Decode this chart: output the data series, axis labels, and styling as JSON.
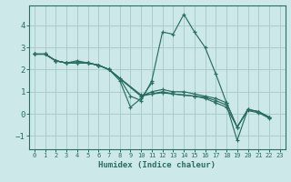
{
  "xlabel": "Humidex (Indice chaleur)",
  "ylabel": "",
  "bg_color": "#cce8e8",
  "grid_color": "#aacccc",
  "line_color": "#2a6e62",
  "xlim": [
    -0.5,
    23.5
  ],
  "ylim": [
    -1.6,
    4.9
  ],
  "xticks": [
    0,
    1,
    2,
    3,
    4,
    5,
    6,
    7,
    8,
    9,
    10,
    11,
    12,
    13,
    14,
    15,
    16,
    17,
    18,
    19,
    20,
    21,
    22,
    23
  ],
  "yticks": [
    -1,
    0,
    1,
    2,
    3,
    4
  ],
  "lines": [
    {
      "x": [
        0,
        1,
        2,
        3,
        4,
        5,
        6,
        7,
        8,
        9,
        10,
        11,
        12,
        13,
        14,
        15,
        16,
        17,
        18,
        19,
        20,
        21,
        22
      ],
      "y": [
        2.7,
        2.7,
        2.4,
        2.3,
        2.3,
        2.3,
        2.2,
        2.0,
        1.6,
        0.8,
        0.6,
        1.5,
        3.7,
        3.6,
        4.5,
        3.7,
        3.0,
        1.8,
        0.5,
        -0.6,
        0.2,
        0.1,
        -0.15
      ]
    },
    {
      "x": [
        0,
        1,
        2,
        3,
        4,
        5,
        6,
        7,
        8,
        9,
        10,
        11
      ],
      "y": [
        2.7,
        2.7,
        2.4,
        2.3,
        2.3,
        2.3,
        2.2,
        2.0,
        1.5,
        0.3,
        0.7,
        1.4
      ]
    },
    {
      "x": [
        0,
        1,
        2,
        3,
        4,
        5,
        6,
        7,
        10,
        11,
        12,
        13,
        14,
        15,
        16,
        17,
        18,
        19,
        20,
        21,
        22
      ],
      "y": [
        2.7,
        2.7,
        2.4,
        2.3,
        2.3,
        2.3,
        2.2,
        2.0,
        0.8,
        1.0,
        1.1,
        1.0,
        1.0,
        0.9,
        0.8,
        0.7,
        0.5,
        -0.6,
        0.2,
        0.1,
        -0.15
      ]
    },
    {
      "x": [
        0,
        1,
        2,
        3,
        4,
        5,
        6,
        7,
        10,
        11,
        12,
        13,
        14,
        15,
        16,
        17,
        18,
        19,
        20,
        21,
        22
      ],
      "y": [
        2.7,
        2.7,
        2.4,
        2.3,
        2.3,
        2.3,
        2.2,
        2.0,
        0.8,
        0.9,
        1.0,
        0.9,
        0.85,
        0.8,
        0.75,
        0.6,
        0.4,
        -1.2,
        0.2,
        0.1,
        -0.15
      ]
    },
    {
      "x": [
        0,
        1,
        2,
        3,
        4,
        5,
        6,
        7,
        10,
        11,
        12,
        13,
        14,
        15,
        16,
        17,
        18,
        19,
        20,
        21,
        22
      ],
      "y": [
        2.7,
        2.7,
        2.4,
        2.3,
        2.4,
        2.3,
        2.2,
        2.0,
        0.85,
        0.9,
        0.95,
        0.9,
        0.85,
        0.8,
        0.7,
        0.5,
        0.3,
        -0.6,
        0.15,
        0.05,
        -0.2
      ]
    }
  ]
}
